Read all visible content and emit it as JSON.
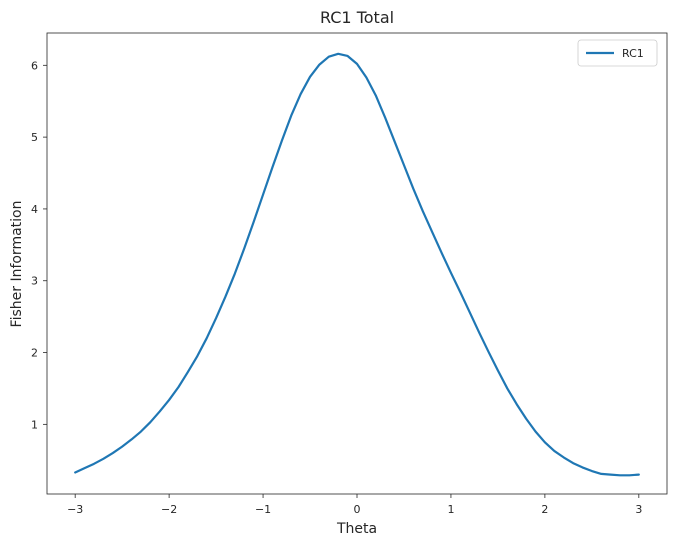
{
  "chart_data": {
    "type": "line",
    "title": "RC1 Total",
    "xlabel": "Theta",
    "ylabel": "Fisher Information",
    "xlim": [
      -3.3,
      3.3
    ],
    "ylim": [
      0.03,
      6.45
    ],
    "xticks": [
      -3,
      -2,
      -1,
      0,
      1,
      2,
      3
    ],
    "xtick_labels": [
      "−3",
      "−2",
      "−1",
      "0",
      "1",
      "2",
      "3"
    ],
    "yticks": [
      1,
      2,
      3,
      4,
      5,
      6
    ],
    "ytick_labels": [
      "1",
      "2",
      "3",
      "4",
      "5",
      "6"
    ],
    "grid": false,
    "legend_position": "top-right",
    "series": [
      {
        "name": "RC1",
        "color": "#1f77b4",
        "x": [
          -3.0,
          -2.9,
          -2.8,
          -2.7,
          -2.6,
          -2.5,
          -2.4,
          -2.3,
          -2.2,
          -2.1,
          -2.0,
          -1.9,
          -1.8,
          -1.7,
          -1.6,
          -1.5,
          -1.4,
          -1.3,
          -1.2,
          -1.1,
          -1.0,
          -0.9,
          -0.8,
          -0.7,
          -0.6,
          -0.5,
          -0.4,
          -0.3,
          -0.2,
          -0.1,
          0.0,
          0.1,
          0.2,
          0.3,
          0.4,
          0.5,
          0.6,
          0.7,
          0.8,
          0.9,
          1.0,
          1.1,
          1.2,
          1.3,
          1.4,
          1.5,
          1.6,
          1.7,
          1.8,
          1.9,
          2.0,
          2.1,
          2.2,
          2.3,
          2.4,
          2.5,
          2.6,
          2.7,
          2.8,
          2.9,
          3.0
        ],
        "values": [
          0.33,
          0.39,
          0.45,
          0.52,
          0.6,
          0.69,
          0.79,
          0.9,
          1.03,
          1.18,
          1.34,
          1.52,
          1.73,
          1.95,
          2.2,
          2.48,
          2.78,
          3.1,
          3.45,
          3.82,
          4.2,
          4.58,
          4.95,
          5.3,
          5.6,
          5.84,
          6.01,
          6.12,
          6.16,
          6.13,
          6.02,
          5.83,
          5.58,
          5.27,
          4.94,
          4.61,
          4.28,
          3.97,
          3.68,
          3.39,
          3.11,
          2.84,
          2.56,
          2.28,
          2.01,
          1.75,
          1.5,
          1.28,
          1.08,
          0.9,
          0.75,
          0.63,
          0.54,
          0.46,
          0.4,
          0.35,
          0.31,
          0.3,
          0.29,
          0.29,
          0.3
        ]
      }
    ]
  }
}
